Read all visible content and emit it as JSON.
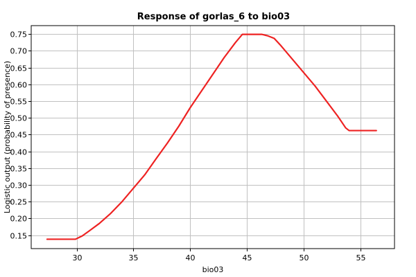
{
  "chart_data": {
    "type": "line",
    "title": "Response of gorlas_6 to bio03",
    "xlabel": "bio03",
    "ylabel": "Logistic output (probability of presence)",
    "xlim": [
      26,
      58
    ],
    "ylim": [
      0.11,
      0.775
    ],
    "x_ticks": [
      30,
      35,
      40,
      45,
      50,
      55
    ],
    "y_ticks": [
      0.15,
      0.2,
      0.25,
      0.3,
      0.35,
      0.4,
      0.45,
      0.5,
      0.55,
      0.6,
      0.65,
      0.7,
      0.75
    ],
    "grid": true,
    "series": [
      {
        "color": "#ee2222",
        "points": [
          [
            27.4,
            0.138
          ],
          [
            29.9,
            0.138
          ],
          [
            30.5,
            0.148
          ],
          [
            31.0,
            0.16
          ],
          [
            32.0,
            0.185
          ],
          [
            33.0,
            0.215
          ],
          [
            34.0,
            0.25
          ],
          [
            35.0,
            0.29
          ],
          [
            36.0,
            0.33
          ],
          [
            37.0,
            0.378
          ],
          [
            38.0,
            0.425
          ],
          [
            39.0,
            0.475
          ],
          [
            40.0,
            0.53
          ],
          [
            41.0,
            0.58
          ],
          [
            42.0,
            0.63
          ],
          [
            43.0,
            0.68
          ],
          [
            44.0,
            0.725
          ],
          [
            44.6,
            0.749
          ],
          [
            46.3,
            0.749
          ],
          [
            46.8,
            0.745
          ],
          [
            47.4,
            0.737
          ],
          [
            48.0,
            0.715
          ],
          [
            49.0,
            0.675
          ],
          [
            50.0,
            0.635
          ],
          [
            51.0,
            0.595
          ],
          [
            52.0,
            0.55
          ],
          [
            53.0,
            0.505
          ],
          [
            53.7,
            0.47
          ],
          [
            54.0,
            0.462
          ],
          [
            56.4,
            0.462
          ]
        ]
      }
    ]
  }
}
